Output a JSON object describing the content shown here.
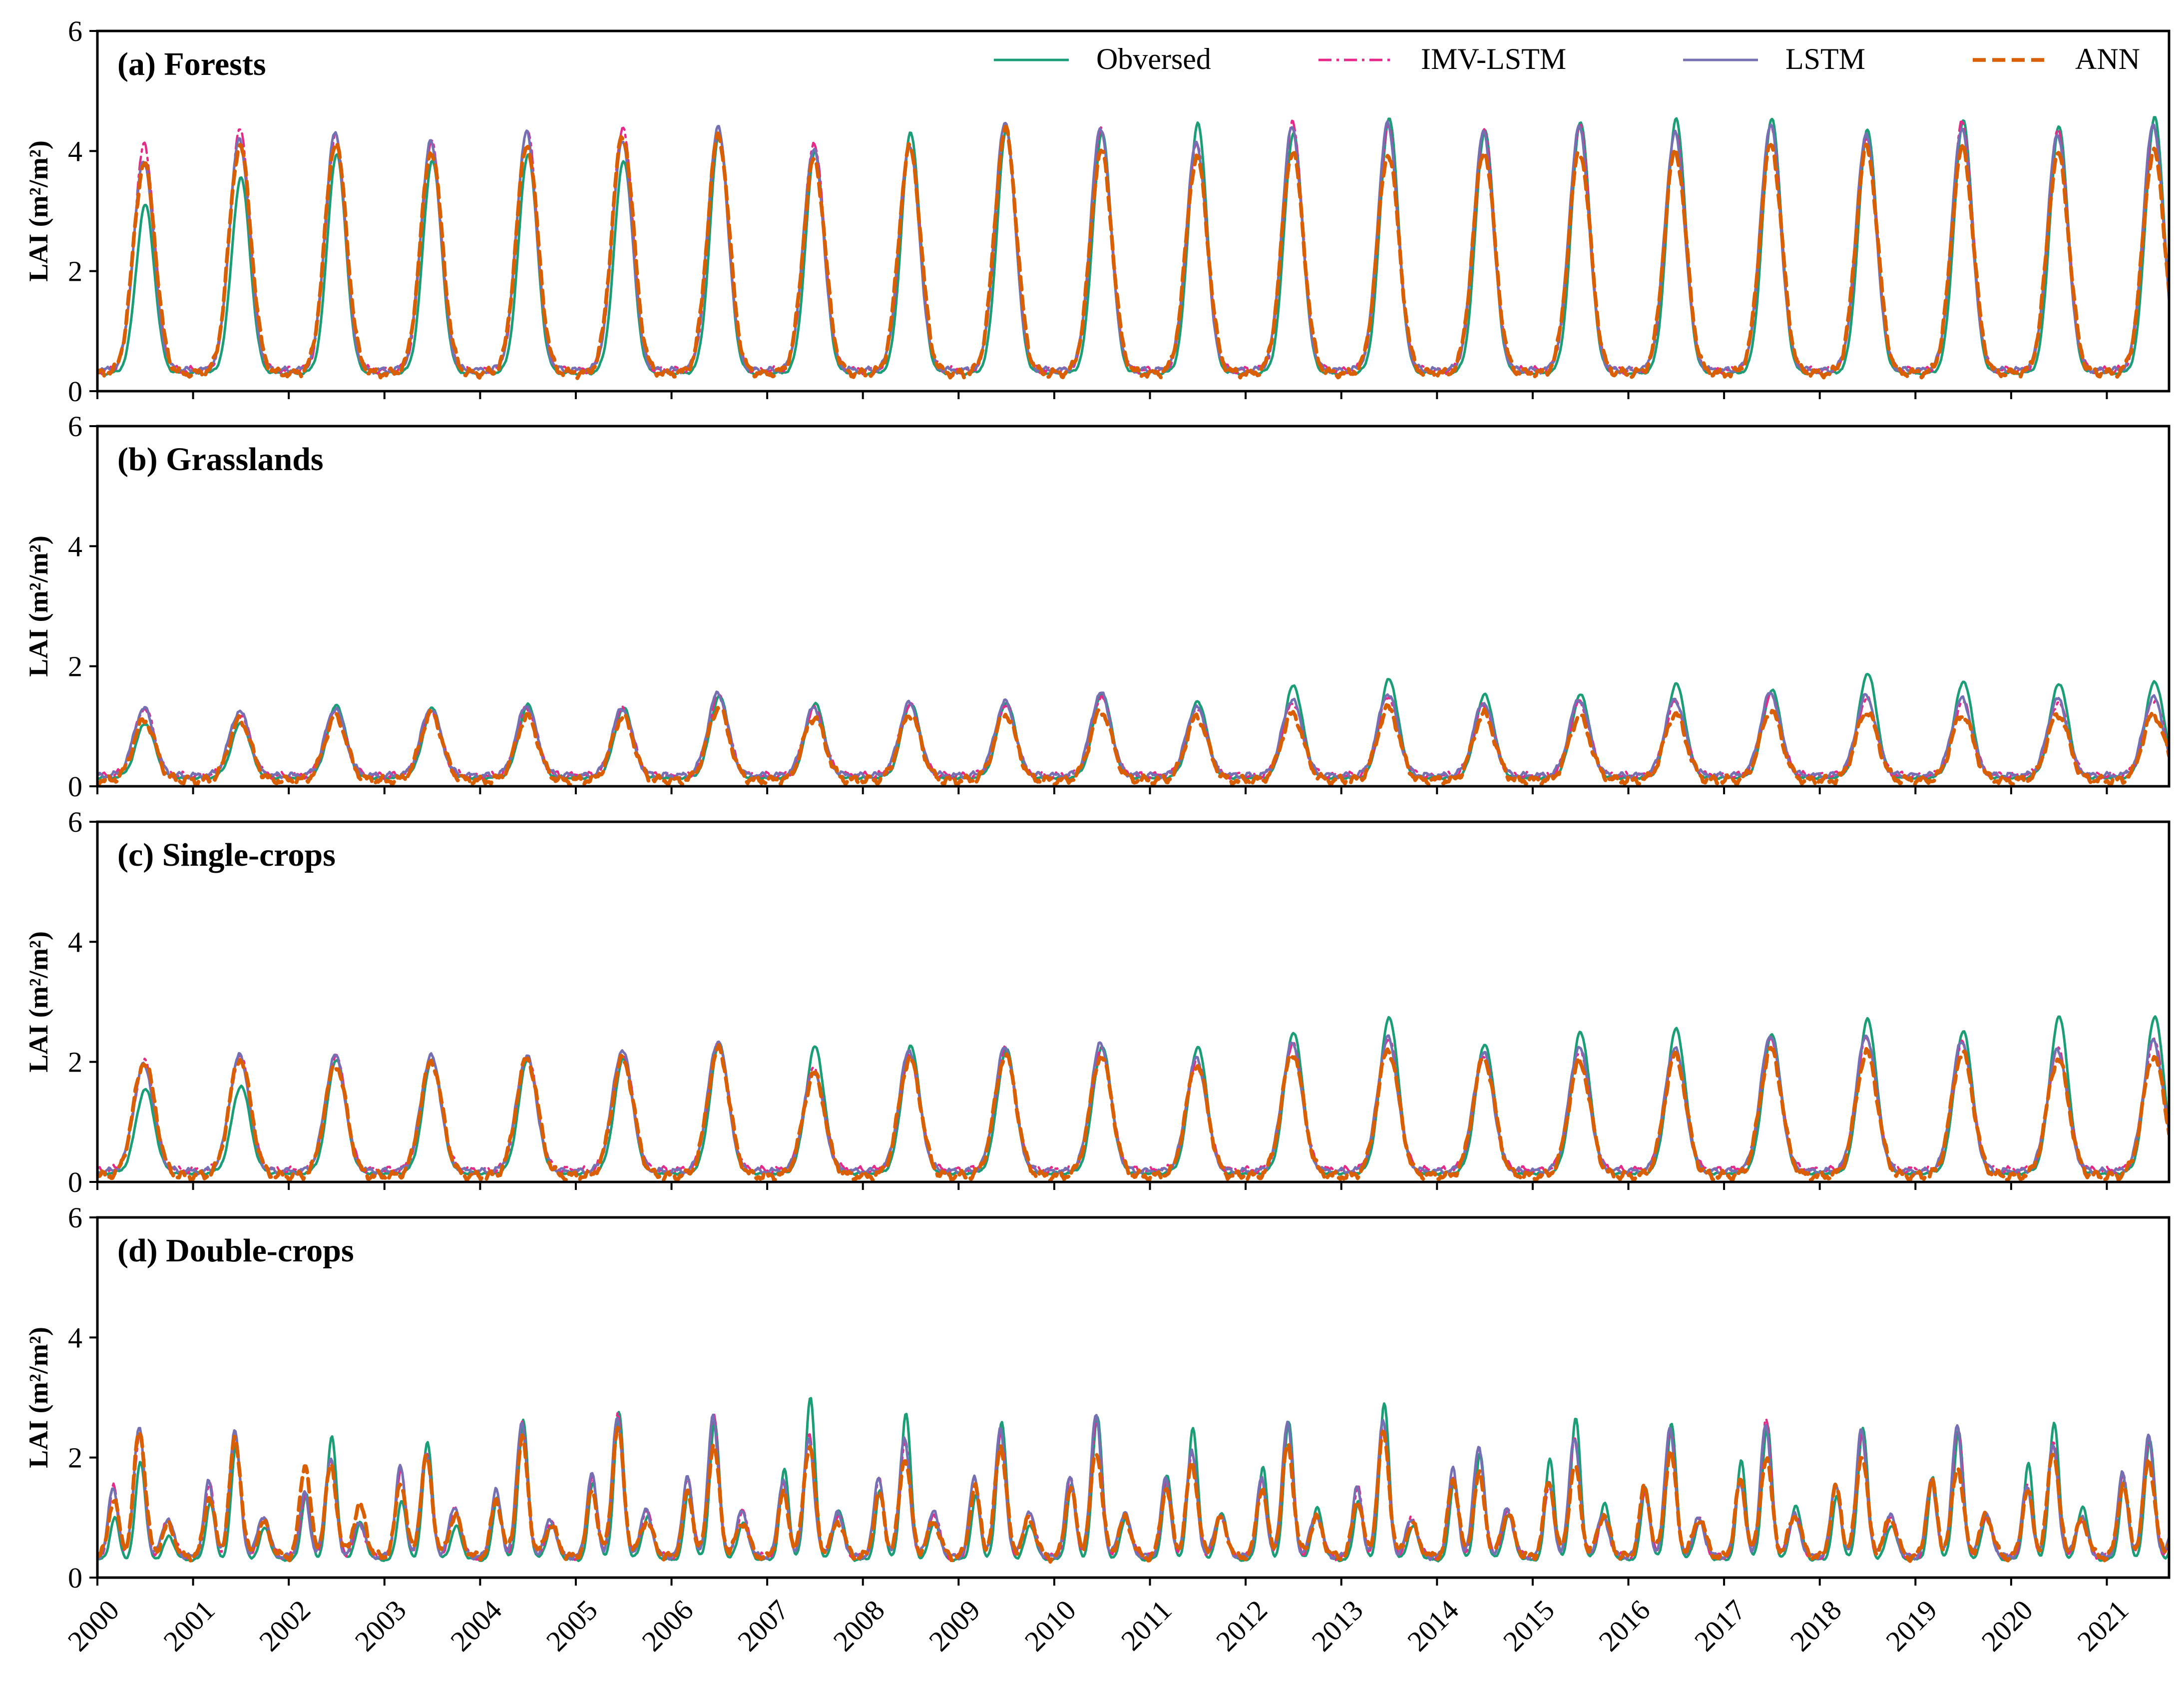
{
  "chart_data": {
    "type": "line",
    "x_unit": "year",
    "xlim": [
      2000,
      2021.65
    ],
    "x_tick_labels": [
      "2000",
      "2001",
      "2002",
      "2003",
      "2004",
      "2005",
      "2006",
      "2007",
      "2008",
      "2009",
      "2010",
      "2011",
      "2012",
      "2013",
      "2014",
      "2015",
      "2016",
      "2017",
      "2018",
      "2019",
      "2020",
      "2021"
    ],
    "ylim": [
      0,
      6
    ],
    "y_ticks": [
      0,
      2,
      4,
      6
    ],
    "y_tick_labels": [
      "0",
      "2",
      "4",
      "6"
    ],
    "ylabel": "LAI (m²/m²)",
    "grid": false,
    "legend": {
      "position": "top-right of panel (a)",
      "entries": [
        {
          "label": "Obversed",
          "color": "#1b9e77",
          "style": "solid"
        },
        {
          "label": "IMV-LSTM",
          "color": "#e7298a",
          "style": "dashdot"
        },
        {
          "label": "LSTM",
          "color": "#7570b3",
          "style": "solid"
        },
        {
          "label": "ANN",
          "color": "#d95f02",
          "style": "dashed"
        }
      ]
    },
    "series_keys": [
      "observed",
      "imv_lstm",
      "lstm",
      "ann"
    ],
    "series_colors": {
      "observed": "#1b9e77",
      "imv_lstm": "#e7298a",
      "lstm": "#7570b3",
      "ann": "#d95f02"
    },
    "panels": [
      {
        "title": "(a) Forests",
        "kind": "single",
        "annual_peaks": {
          "years": [
            2000,
            2001,
            2002,
            2003,
            2004,
            2005,
            2006,
            2007,
            2008,
            2009,
            2010,
            2011,
            2012,
            2013,
            2014,
            2015,
            2016,
            2017,
            2018,
            2019,
            2020,
            2021
          ],
          "observed": [
            3.1,
            3.55,
            3.95,
            3.85,
            3.95,
            3.85,
            4.3,
            4.0,
            4.3,
            4.35,
            4.3,
            4.45,
            4.3,
            4.55,
            4.35,
            4.5,
            4.55,
            4.55,
            4.35,
            4.5,
            4.4,
            4.55
          ],
          "imv_lstm": [
            4.1,
            4.35,
            4.25,
            4.15,
            4.35,
            4.4,
            4.35,
            4.15,
            4.1,
            4.45,
            4.35,
            4.1,
            4.45,
            4.4,
            4.35,
            4.45,
            4.35,
            4.45,
            4.25,
            4.5,
            4.35,
            4.4
          ],
          "lstm": [
            3.85,
            4.2,
            4.3,
            4.15,
            4.3,
            4.15,
            4.4,
            4.05,
            4.1,
            4.5,
            4.4,
            4.15,
            4.4,
            4.45,
            4.3,
            4.4,
            4.3,
            4.45,
            4.3,
            4.4,
            4.3,
            4.45
          ],
          "ann": [
            3.8,
            4.1,
            4.15,
            4.0,
            4.1,
            4.25,
            4.25,
            3.85,
            4.05,
            4.35,
            4.0,
            3.9,
            4.0,
            3.95,
            4.0,
            4.0,
            4.0,
            4.1,
            4.05,
            4.05,
            3.95,
            4.0
          ]
        },
        "troughs": {
          "observed": 0.3,
          "imv_lstm": 0.35,
          "lstm": 0.35,
          "ann": 0.3
        }
      },
      {
        "title": "(b) Grasslands",
        "kind": "single",
        "annual_peaks": {
          "years": [
            2000,
            2001,
            2002,
            2003,
            2004,
            2005,
            2006,
            2007,
            2008,
            2009,
            2010,
            2011,
            2012,
            2013,
            2014,
            2015,
            2016,
            2017,
            2018,
            2019,
            2020,
            2021
          ],
          "observed": [
            1.05,
            1.05,
            1.35,
            1.3,
            1.35,
            1.3,
            1.5,
            1.38,
            1.38,
            1.4,
            1.55,
            1.42,
            1.68,
            1.78,
            1.52,
            1.52,
            1.7,
            1.6,
            1.88,
            1.75,
            1.72,
            1.75
          ],
          "imv_lstm": [
            1.3,
            1.2,
            1.25,
            1.25,
            1.3,
            1.28,
            1.5,
            1.3,
            1.35,
            1.35,
            1.5,
            1.3,
            1.4,
            1.5,
            1.35,
            1.4,
            1.4,
            1.5,
            1.45,
            1.4,
            1.4,
            1.45
          ],
          "lstm": [
            1.3,
            1.25,
            1.3,
            1.3,
            1.35,
            1.3,
            1.55,
            1.3,
            1.38,
            1.4,
            1.55,
            1.32,
            1.45,
            1.55,
            1.4,
            1.45,
            1.45,
            1.55,
            1.5,
            1.45,
            1.45,
            1.48
          ],
          "ann": [
            1.1,
            1.1,
            1.15,
            1.2,
            1.15,
            1.15,
            1.3,
            1.15,
            1.2,
            1.2,
            1.25,
            1.15,
            1.2,
            1.3,
            1.2,
            1.15,
            1.2,
            1.25,
            1.25,
            1.2,
            1.2,
            1.2
          ]
        },
        "troughs": {
          "observed": 0.15,
          "imv_lstm": 0.18,
          "lstm": 0.18,
          "ann": 0.1
        }
      },
      {
        "title": "(c) Single-crops",
        "kind": "single",
        "annual_peaks": {
          "years": [
            2000,
            2001,
            2002,
            2003,
            2004,
            2005,
            2006,
            2007,
            2008,
            2009,
            2010,
            2011,
            2012,
            2013,
            2014,
            2015,
            2016,
            2017,
            2018,
            2019,
            2020,
            2021
          ],
          "observed": [
            1.55,
            1.6,
            2.05,
            2.05,
            2.05,
            2.05,
            2.3,
            2.25,
            2.25,
            2.2,
            2.25,
            2.25,
            2.5,
            2.75,
            2.3,
            2.5,
            2.55,
            2.45,
            2.7,
            2.5,
            2.75,
            2.75
          ],
          "imv_lstm": [
            2.0,
            2.1,
            2.1,
            2.05,
            2.1,
            2.15,
            2.3,
            1.9,
            2.1,
            2.2,
            2.2,
            2.0,
            2.3,
            2.4,
            2.1,
            2.2,
            2.2,
            2.4,
            2.4,
            2.3,
            2.2,
            2.35
          ],
          "lstm": [
            1.95,
            2.1,
            2.1,
            2.1,
            2.1,
            2.2,
            2.35,
            1.85,
            2.2,
            2.25,
            2.3,
            2.05,
            2.3,
            2.4,
            2.15,
            2.25,
            2.25,
            2.45,
            2.45,
            2.35,
            2.2,
            2.35
          ],
          "ann": [
            2.0,
            2.05,
            1.95,
            2.0,
            2.05,
            2.05,
            2.2,
            1.8,
            2.05,
            2.1,
            2.1,
            1.95,
            2.15,
            2.2,
            2.05,
            2.0,
            2.1,
            2.2,
            2.15,
            2.15,
            2.05,
            2.1
          ]
        },
        "troughs": {
          "observed": 0.15,
          "imv_lstm": 0.2,
          "lstm": 0.18,
          "ann": 0.1
        }
      },
      {
        "title": "(d) Double-crops",
        "kind": "double",
        "annual_peaks": {
          "years": [
            2000,
            2001,
            2002,
            2003,
            2004,
            2005,
            2006,
            2007,
            2008,
            2009,
            2010,
            2011,
            2012,
            2013,
            2014,
            2015,
            2016,
            2017,
            2018,
            2019,
            2020,
            2021
          ],
          "observed": [
            1.95,
            2.2,
            2.35,
            2.25,
            2.6,
            2.75,
            2.6,
            3.0,
            2.75,
            2.6,
            2.7,
            2.5,
            2.6,
            2.9,
            2.05,
            2.65,
            2.55,
            2.55,
            2.5,
            2.45,
            2.6,
            2.3
          ],
          "imv_lstm": [
            2.4,
            2.4,
            2.0,
            2.1,
            2.6,
            2.7,
            2.7,
            2.35,
            2.25,
            2.4,
            2.65,
            2.1,
            2.6,
            2.6,
            2.15,
            2.3,
            2.45,
            2.6,
            2.4,
            2.5,
            2.25,
            2.3
          ],
          "lstm": [
            2.5,
            2.45,
            2.0,
            2.1,
            2.6,
            2.7,
            2.7,
            2.3,
            2.3,
            2.45,
            2.7,
            2.1,
            2.6,
            2.65,
            2.2,
            2.35,
            2.5,
            2.55,
            2.45,
            2.5,
            2.2,
            2.35
          ],
          "ann": [
            2.45,
            2.3,
            1.85,
            2.0,
            2.3,
            2.5,
            2.2,
            2.2,
            2.0,
            2.2,
            2.1,
            1.9,
            2.2,
            2.4,
            1.7,
            1.85,
            2.1,
            2.0,
            2.05,
            1.85,
            2.1,
            1.95
          ]
        },
        "early_peaks": {
          "observed": [
            1.0,
            1.25,
            1.4,
            1.3,
            1.35,
            1.6,
            1.45,
            1.8,
            1.45,
            1.35,
            1.55,
            1.7,
            1.85,
            1.3,
            1.65,
            2.0,
            1.5,
            1.95,
            1.35,
            1.65,
            1.9,
            1.6
          ],
          "imv_lstm": [
            1.5,
            1.55,
            1.35,
            1.8,
            1.35,
            1.7,
            1.7,
            1.6,
            1.65,
            1.65,
            1.65,
            1.6,
            1.6,
            1.5,
            1.7,
            1.55,
            1.45,
            1.6,
            1.55,
            1.6,
            1.5,
            1.7
          ],
          "lstm": [
            1.5,
            1.6,
            1.4,
            1.85,
            1.45,
            1.75,
            1.7,
            1.65,
            1.7,
            1.7,
            1.7,
            1.65,
            1.65,
            1.5,
            1.8,
            1.6,
            1.5,
            1.6,
            1.6,
            1.65,
            1.55,
            1.75
          ],
          "ann": [
            1.3,
            1.35,
            1.9,
            1.6,
            1.3,
            1.45,
            1.4,
            1.4,
            1.4,
            1.5,
            1.5,
            1.5,
            1.5,
            1.3,
            1.65,
            1.6,
            1.5,
            1.6,
            1.5,
            1.6,
            1.45,
            1.55
          ]
        },
        "troughs": {
          "observed": 0.3,
          "imv_lstm": 0.35,
          "lstm": 0.35,
          "ann": 0.35
        }
      }
    ]
  }
}
